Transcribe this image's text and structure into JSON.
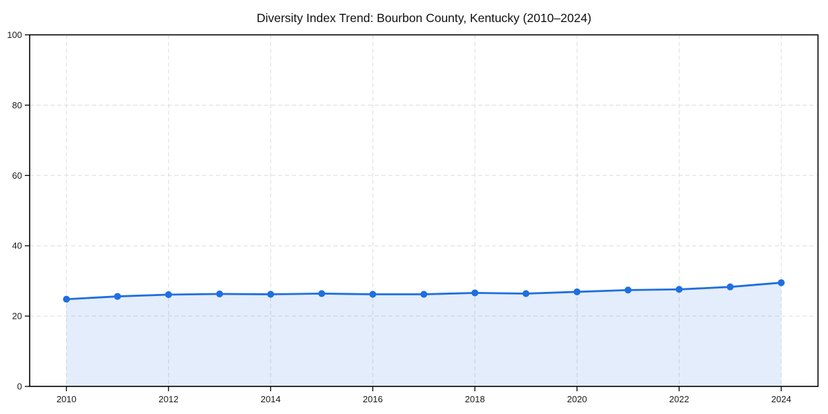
{
  "title": "Diversity Index Trend: Bourbon County, Kentucky (2010–2024)",
  "colors": {
    "line": "#1f6fe0",
    "area_fill": "#1f6fe0",
    "area_fill_opacity": 0.12,
    "grid": "#dcdcdc",
    "axis": "#000000",
    "tick_text": "#1a1a1a",
    "background": "#ffffff"
  },
  "chart_data": {
    "type": "line",
    "title": "Diversity Index Trend: Bourbon County, Kentucky (2010–2024)",
    "x": [
      2010,
      2011,
      2012,
      2013,
      2014,
      2015,
      2016,
      2017,
      2018,
      2019,
      2020,
      2021,
      2022,
      2023,
      2024
    ],
    "series": [
      {
        "name": "Diversity Index",
        "values": [
          24.8,
          25.6,
          26.1,
          26.3,
          26.2,
          26.4,
          26.2,
          26.2,
          26.6,
          26.4,
          26.9,
          27.4,
          27.6,
          28.3,
          29.5
        ]
      }
    ],
    "xlabel": "",
    "ylabel": "",
    "xlim": [
      2009.28,
      2024.72
    ],
    "ylim": [
      0,
      100
    ],
    "xticks": [
      2010,
      2012,
      2014,
      2016,
      2018,
      2020,
      2022,
      2024
    ],
    "yticks": [
      0,
      20,
      40,
      60,
      80,
      100
    ],
    "grid": true,
    "grid_style": "dashed",
    "legend": "none",
    "marker": "circle",
    "marker_radius": 5,
    "line_width": 2.8,
    "area_fill": true
  }
}
